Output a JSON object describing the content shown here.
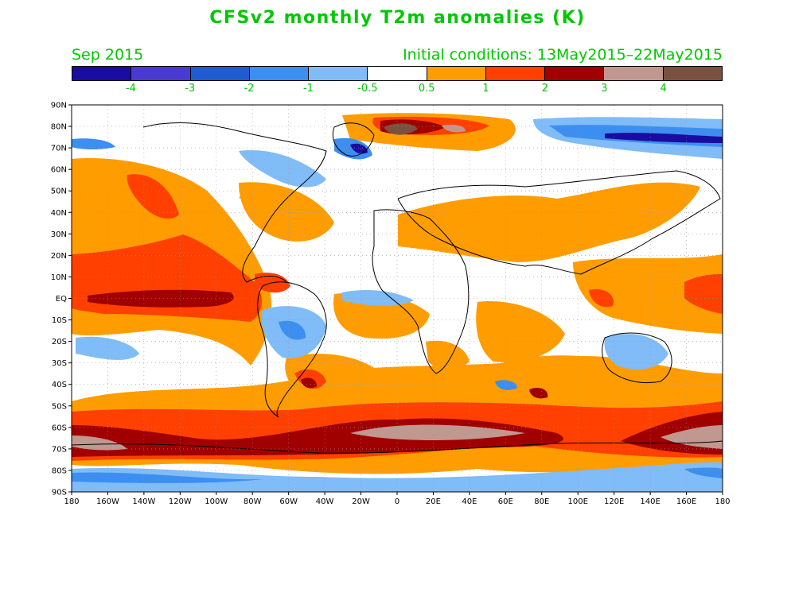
{
  "title": "CFSv2 monthly T2m anomalies (K)",
  "valid_month": "Sep 2015",
  "initial_conditions": "Initial conditions: 13May2015–22May2015",
  "colorbar": {
    "colors": [
      "#1a0ca0",
      "#4a3ad2",
      "#1f5cd0",
      "#3c8ef0",
      "#7fbcf8",
      "#ffffff",
      "#ff9d00",
      "#ff4000",
      "#a00000",
      "#c09890",
      "#7a5040"
    ],
    "labels": [
      "-4",
      "-3",
      "-2",
      "-1",
      "-0.5",
      "0.5",
      "1",
      "2",
      "3",
      "4"
    ]
  },
  "map": {
    "lat_labels": [
      "90N",
      "80N",
      "70N",
      "60N",
      "50N",
      "40N",
      "30N",
      "20N",
      "10N",
      "EQ",
      "10S",
      "20S",
      "30S",
      "40S",
      "50S",
      "60S",
      "70S",
      "80S",
      "90S"
    ],
    "lon_labels": [
      "180",
      "160W",
      "140W",
      "120W",
      "100W",
      "80W",
      "60W",
      "40W",
      "20W",
      "0",
      "20E",
      "40E",
      "60E",
      "80E",
      "100E",
      "120E",
      "140E",
      "160E",
      "180"
    ],
    "lon_range": [
      -180,
      180
    ],
    "lat_range": [
      -90,
      90
    ],
    "grid": "dotted"
  }
}
